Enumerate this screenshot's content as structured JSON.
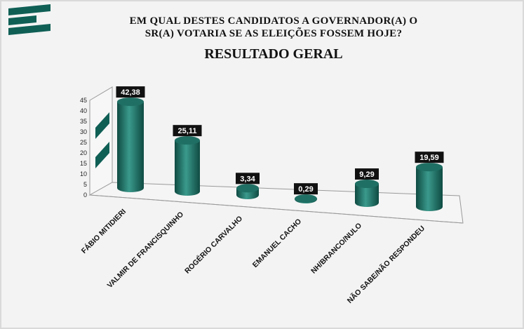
{
  "title_line1": "EM QUAL DESTES CANDIDATOS A GOVERNADOR(A) O",
  "title_line2": "SR(A) VOTARIA SE AS ELEIÇÕES FOSSEM HOJE?",
  "subtitle": "RESULTADO GERAL",
  "colors": {
    "bar": "#1f6f64",
    "bar_dark": "#0f4a42",
    "bar_light": "#3a9a8c",
    "label_bg": "#111111",
    "logo": "#0f5f55"
  },
  "chart_data": {
    "type": "bar",
    "title": "EM QUAL DESTES CANDIDATOS A GOVERNADOR(A) O SR(A) VOTARIA SE AS ELEIÇÕES FOSSEM HOJE?",
    "subtitle": "RESULTADO GERAL",
    "categories": [
      "FÁBIO MITIDIERI",
      "VALMIR DE FRANCISQUINHO",
      "ROGÉRIO CARVALHO",
      "EMANUEL CACHO",
      "NH/BRANCO/NULO",
      "NÃO SABE/NÃO RESPONDEU"
    ],
    "values": [
      42.38,
      25.11,
      3.34,
      0.29,
      9.29,
      19.59
    ],
    "value_labels": [
      "42,38",
      "25,11",
      "3,34",
      "0,29",
      "9,29",
      "19,59"
    ],
    "yticks": [
      "0",
      "5",
      "10",
      "15",
      "20",
      "25",
      "30",
      "35",
      "40",
      "45"
    ],
    "ylim": [
      0,
      45
    ],
    "style": "3d-cylinder",
    "grid": false
  }
}
